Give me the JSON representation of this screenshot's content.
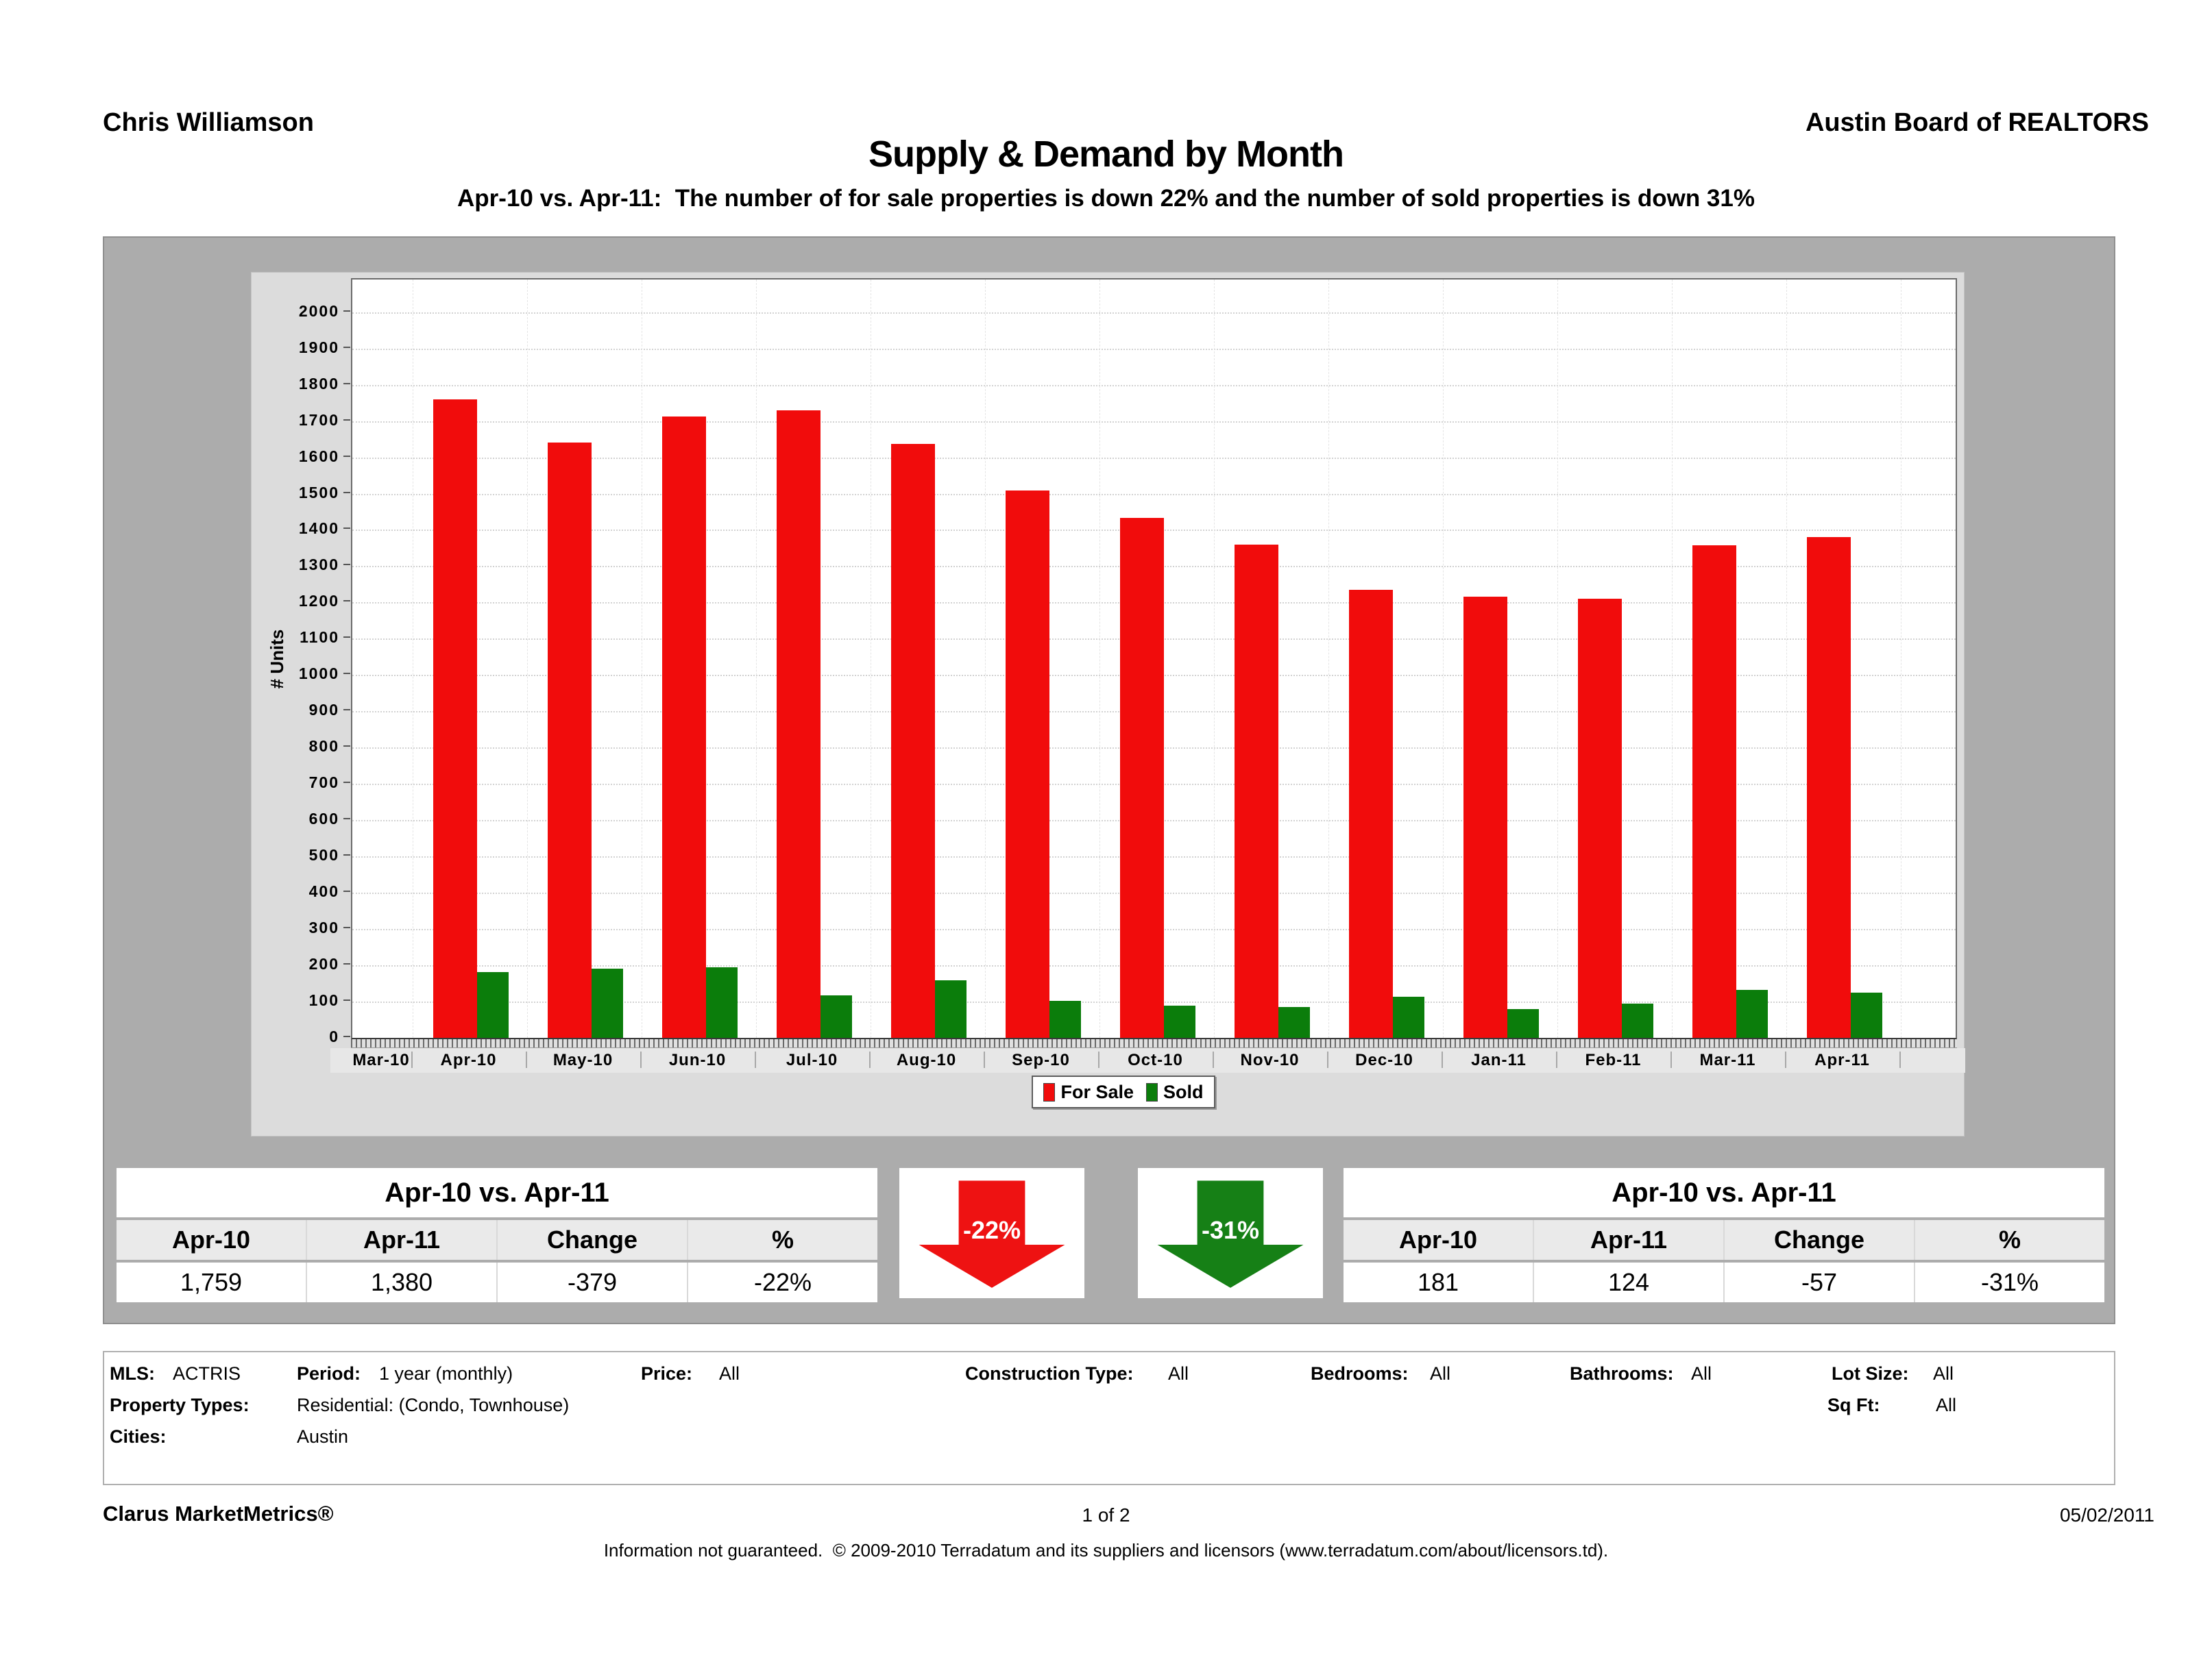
{
  "header": {
    "agent": "Chris Williamson",
    "board": "Austin Board of REALTORS"
  },
  "title": "Supply & Demand by Month",
  "subtitle": "Apr-10 vs. Apr-11:  The number of for sale properties is down 22% and the number of sold properties is down 31%",
  "chart_data": {
    "type": "bar",
    "title": "Supply & Demand by Month",
    "ylabel": "# Units",
    "xlabel": "",
    "ylim": [
      0,
      2000
    ],
    "ytick_step": 100,
    "grid": true,
    "legend_position": "bottom-center",
    "categories": [
      "Mar-10",
      "Apr-10",
      "May-10",
      "Jun-10",
      "Jul-10",
      "Aug-10",
      "Sep-10",
      "Oct-10",
      "Nov-10",
      "Dec-10",
      "Jan-11",
      "Feb-11",
      "Mar-11",
      "Apr-11"
    ],
    "series": [
      {
        "name": "For Sale",
        "color": "#f10c0c",
        "values": [
          null,
          1759,
          1640,
          1713,
          1730,
          1636,
          1508,
          1433,
          1359,
          1235,
          1216,
          1211,
          1357,
          1380
        ]
      },
      {
        "name": "Sold",
        "color": "#0b7d0b",
        "values": [
          null,
          181,
          191,
          195,
          117,
          158,
          102,
          89,
          85,
          113,
          79,
          95,
          132,
          124
        ]
      }
    ]
  },
  "summary_left": {
    "title": "Apr-10 vs. Apr-11",
    "headers": [
      "Apr-10",
      "Apr-11",
      "Change",
      "%"
    ],
    "values": [
      "1,759",
      "1,380",
      "-379",
      "-22%"
    ]
  },
  "summary_right": {
    "title": "Apr-10 vs. Apr-11",
    "headers": [
      "Apr-10",
      "Apr-11",
      "Change",
      "%"
    ],
    "values": [
      "181",
      "124",
      "-57",
      "-31%"
    ]
  },
  "arrows": [
    {
      "value": "-22%",
      "color": "#ee1212"
    },
    {
      "value": "-31%",
      "color": "#168016"
    }
  ],
  "filters": {
    "row1": [
      {
        "label": "MLS:",
        "value": "ACTRIS"
      },
      {
        "label": "Period:",
        "value": "1 year (monthly)"
      },
      {
        "label": "Price:",
        "value": "All"
      },
      {
        "label": "Construction Type:",
        "value": "All"
      },
      {
        "label": "Bedrooms:",
        "value": "All"
      },
      {
        "label": "Bathrooms:",
        "value": "All"
      },
      {
        "label": "Lot Size:",
        "value": "All"
      }
    ],
    "row2": [
      {
        "label": "Property Types:",
        "value": "Residential: (Condo, Townhouse)"
      },
      {
        "label": "Sq Ft:",
        "value": "All"
      }
    ],
    "row3": [
      {
        "label": "Cities:",
        "value": "Austin"
      }
    ]
  },
  "footer": {
    "brand": "Clarus MarketMetrics®",
    "page": "1 of 2",
    "date": "05/02/2011",
    "disclaimer": "Information not guaranteed.  © 2009-2010 Terradatum and its suppliers and licensors (www.terradatum.com/about/licensors.td)."
  }
}
